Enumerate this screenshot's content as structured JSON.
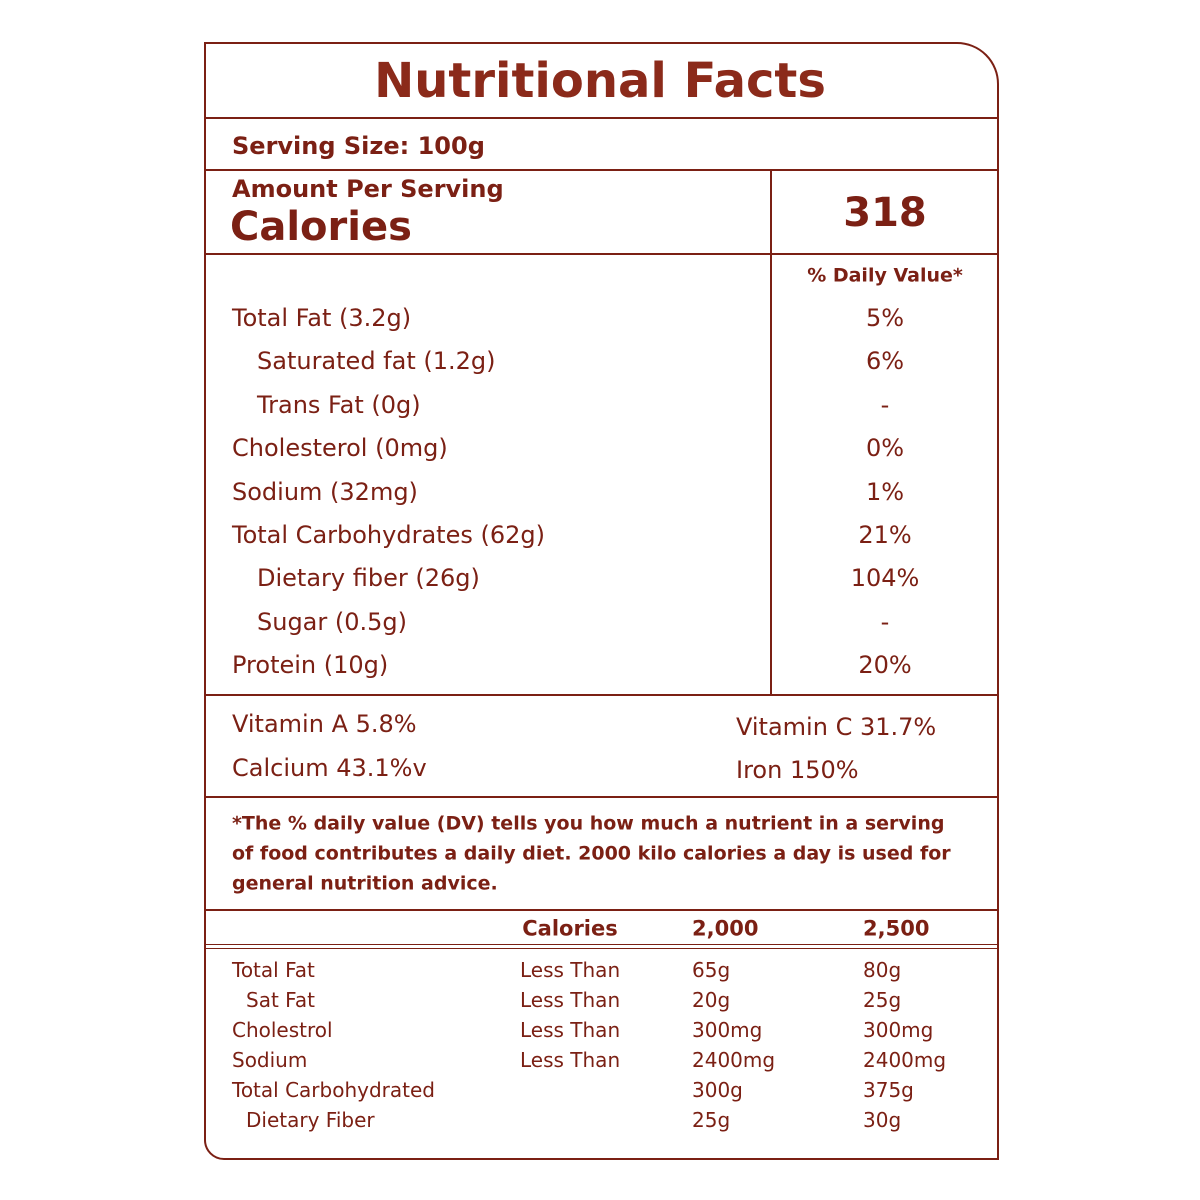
{
  "title": "Nutritional Facts",
  "serving_size": "Serving Size: 100g",
  "amount_per_serving": "Amount Per Serving",
  "calories_label": "Calories",
  "calories_value": "318",
  "dv_header": "% Daily Value*",
  "nutrients": [
    {
      "label": "Total Fat (3.2g)",
      "dv": "5%"
    },
    {
      "label": "Saturated fat (1.2g)",
      "dv": "6%"
    },
    {
      "label": "Trans Fat (0g)",
      "dv": "-"
    },
    {
      "label": "Cholesterol (0mg)",
      "dv": "0%"
    },
    {
      "label": "Sodium (32mg)",
      "dv": "1%"
    },
    {
      "label": "Total Carbohydrates  (62g)",
      "dv": "21%"
    },
    {
      "label": "Dietary fiber (26g)",
      "dv": "104%"
    },
    {
      "label": "Sugar (0.5g)",
      "dv": "-"
    },
    {
      "label": "Protein (10g)",
      "dv": "20%"
    }
  ],
  "vitamins": {
    "left": [
      "Vitamin A 5.8%",
      "Calcium 43.1%v"
    ],
    "right": [
      "Vitamin C 31.7%",
      "Iron 150%"
    ]
  },
  "footnote": [
    "*The % daily value (DV) tells you how much a nutrient in a serving",
    "of food contributes a daily diet. 2000 kilo calories a day is used for",
    "general nutrition advice."
  ],
  "table": {
    "header": [
      "Calories",
      "2,000",
      "2,500"
    ],
    "rows": [
      [
        "Total Fat",
        "Less Than",
        "65g",
        "80g"
      ],
      [
        "Sat Fat",
        "Less Than",
        "20g",
        "25g"
      ],
      [
        "Cholestrol",
        "Less Than",
        "300mg",
        "300mg"
      ],
      [
        "Sodium",
        "Less Than",
        "2400mg",
        "2400mg"
      ],
      [
        "Total Carbohydrated",
        null,
        "300g",
        "375g"
      ],
      [
        "Dietary Fiber",
        null,
        "25g",
        "30g"
      ]
    ]
  }
}
